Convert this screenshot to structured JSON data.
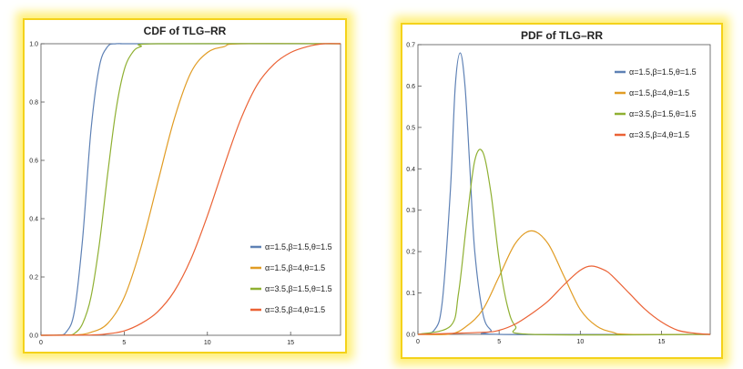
{
  "chart_data": [
    {
      "type": "line",
      "title": "CDF of TLG–RR",
      "xlabel": "",
      "ylabel": "",
      "xlim": [
        0,
        18
      ],
      "ylim": [
        0,
        1.0
      ],
      "xticks": [
        0,
        5,
        10,
        15
      ],
      "yticks": [
        0.0,
        0.2,
        0.4,
        0.6,
        0.8,
        1.0
      ],
      "xtick_labels": [
        "0",
        "5",
        "10",
        "15"
      ],
      "ytick_labels": [
        "0.0",
        "0.2",
        "0.4",
        "0.6",
        "0.8",
        "1.0"
      ],
      "legend_position": "bottom-right",
      "series": [
        {
          "name": "α=1.5,β=1.5,θ=1.5",
          "color": "#5e81b5",
          "x": [
            0,
            1,
            1.5,
            2,
            2.5,
            3,
            3.5,
            4,
            4.5,
            5,
            6,
            18
          ],
          "y": [
            0,
            0.001,
            0.01,
            0.08,
            0.33,
            0.7,
            0.92,
            0.99,
            1.0,
            1.0,
            1.0,
            1.0
          ]
        },
        {
          "name": "α=1.5,β=4,θ=1.5",
          "color": "#e19c24",
          "x": [
            0,
            2,
            3,
            4,
            5,
            6,
            7,
            8,
            9,
            10,
            11,
            12,
            18
          ],
          "y": [
            0,
            0.001,
            0.01,
            0.04,
            0.13,
            0.3,
            0.52,
            0.74,
            0.9,
            0.97,
            0.99,
            1.0,
            1.0
          ]
        },
        {
          "name": "α=3.5,β=1.5,θ=1.5",
          "color": "#8fb032",
          "x": [
            0,
            1.5,
            2,
            2.5,
            3,
            3.5,
            4,
            4.5,
            5,
            5.5,
            6,
            7,
            18
          ],
          "y": [
            0,
            0.001,
            0.006,
            0.04,
            0.13,
            0.31,
            0.55,
            0.77,
            0.91,
            0.97,
            0.99,
            1.0,
            1.0
          ]
        },
        {
          "name": "α=3.5,β=4,θ=1.5",
          "color": "#eb6235",
          "x": [
            0,
            3,
            4,
            5,
            6,
            7,
            8,
            9,
            10,
            11,
            12,
            13,
            14,
            15,
            16,
            17,
            18
          ],
          "y": [
            0,
            0.001,
            0.005,
            0.015,
            0.04,
            0.08,
            0.15,
            0.26,
            0.41,
            0.58,
            0.74,
            0.86,
            0.93,
            0.97,
            0.99,
            1.0,
            1.0
          ]
        }
      ]
    },
    {
      "type": "line",
      "title": "PDF of TLG–RR",
      "xlabel": "",
      "ylabel": "",
      "xlim": [
        0,
        18
      ],
      "ylim": [
        0,
        0.7
      ],
      "xticks": [
        0,
        5,
        10,
        15
      ],
      "yticks": [
        0.0,
        0.1,
        0.2,
        0.3,
        0.4,
        0.5,
        0.6,
        0.7
      ],
      "xtick_labels": [
        "0",
        "5",
        "10",
        "15"
      ],
      "ytick_labels": [
        "0.0",
        "0.1",
        "0.2",
        "0.3",
        "0.4",
        "0.5",
        "0.6",
        "0.7"
      ],
      "legend_position": "top-right",
      "series": [
        {
          "name": "α=1.5,β=1.5,θ=1.5",
          "color": "#5e81b5",
          "x": [
            0,
            1,
            1.5,
            2,
            2.3,
            2.6,
            2.9,
            3.2,
            3.5,
            4,
            4.5,
            5,
            18
          ],
          "y": [
            0,
            0.01,
            0.08,
            0.35,
            0.6,
            0.68,
            0.6,
            0.4,
            0.2,
            0.05,
            0.01,
            0,
            0
          ]
        },
        {
          "name": "α=1.5,β=4,θ=1.5",
          "color": "#e19c24",
          "x": [
            0,
            2,
            3,
            4,
            5,
            6,
            7,
            8,
            9,
            10,
            11,
            12,
            13,
            18
          ],
          "y": [
            0,
            0.001,
            0.02,
            0.06,
            0.14,
            0.22,
            0.25,
            0.22,
            0.14,
            0.06,
            0.02,
            0.005,
            0,
            0
          ]
        },
        {
          "name": "α=3.5,β=1.5,θ=1.5",
          "color": "#8fb032",
          "x": [
            0,
            2,
            2.5,
            3,
            3.5,
            4,
            4.5,
            5,
            5.5,
            6,
            7,
            18
          ],
          "y": [
            0,
            0.02,
            0.1,
            0.27,
            0.42,
            0.44,
            0.34,
            0.18,
            0.07,
            0.02,
            0,
            0
          ]
        },
        {
          "name": "α=3.5,β=4,θ=1.5",
          "color": "#eb6235",
          "x": [
            0,
            4,
            5,
            6,
            7,
            8,
            9,
            10,
            10.7,
            11.5,
            12,
            13,
            14,
            15,
            16,
            17,
            18
          ],
          "y": [
            0,
            0.005,
            0.01,
            0.025,
            0.05,
            0.08,
            0.12,
            0.155,
            0.165,
            0.155,
            0.14,
            0.1,
            0.06,
            0.03,
            0.01,
            0.003,
            0
          ]
        }
      ]
    }
  ]
}
